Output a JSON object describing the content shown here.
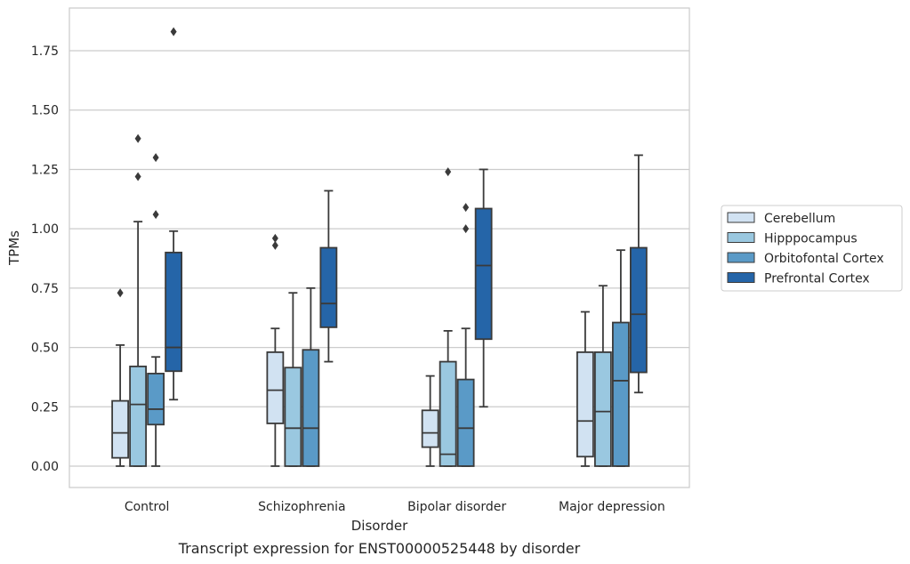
{
  "chart_data": {
    "type": "box",
    "caption": "Transcript expression for ENST00000525448 by disorder",
    "xlabel": "Disorder",
    "ylabel": "TPMs",
    "ylim": [
      -0.09,
      1.93
    ],
    "yticks": [
      0.0,
      0.25,
      0.5,
      0.75,
      1.0,
      1.25,
      1.5,
      1.75
    ],
    "ytick_labels": [
      "0.00",
      "0.25",
      "0.50",
      "0.75",
      "1.00",
      "1.25",
      "1.50",
      "1.75"
    ],
    "grid": "horizontal",
    "legend_position": "right",
    "categories": [
      "Control",
      "Schizophrenia",
      "Bipolar disorder",
      "Major depression"
    ],
    "series": [
      {
        "name": "Cerebellum",
        "color": "#d1e2f2",
        "boxes": [
          {
            "whisker_low": 0.0,
            "q1": 0.035,
            "median": 0.14,
            "q3": 0.275,
            "whisker_high": 0.51,
            "outliers": [
              0.73
            ]
          },
          {
            "whisker_low": 0.0,
            "q1": 0.18,
            "median": 0.32,
            "q3": 0.48,
            "whisker_high": 0.58,
            "outliers": [
              0.93,
              0.96
            ]
          },
          {
            "whisker_low": 0.0,
            "q1": 0.08,
            "median": 0.14,
            "q3": 0.235,
            "whisker_high": 0.38,
            "outliers": []
          },
          {
            "whisker_low": 0.0,
            "q1": 0.04,
            "median": 0.19,
            "q3": 0.48,
            "whisker_high": 0.65,
            "outliers": []
          }
        ]
      },
      {
        "name": "Hipppocampus",
        "color": "#9ac8e0",
        "boxes": [
          {
            "whisker_low": 0.0,
            "q1": 0.0,
            "median": 0.26,
            "q3": 0.42,
            "whisker_high": 1.03,
            "outliers": [
              1.22,
              1.38
            ]
          },
          {
            "whisker_low": 0.0,
            "q1": 0.0,
            "median": 0.16,
            "q3": 0.415,
            "whisker_high": 0.73,
            "outliers": []
          },
          {
            "whisker_low": 0.0,
            "q1": 0.0,
            "median": 0.05,
            "q3": 0.44,
            "whisker_high": 0.57,
            "outliers": [
              1.24
            ]
          },
          {
            "whisker_low": 0.0,
            "q1": 0.0,
            "median": 0.23,
            "q3": 0.48,
            "whisker_high": 0.76,
            "outliers": []
          }
        ]
      },
      {
        "name": "Orbitofontal Cortex",
        "color": "#5a9ac7",
        "boxes": [
          {
            "whisker_low": 0.0,
            "q1": 0.175,
            "median": 0.24,
            "q3": 0.39,
            "whisker_high": 0.46,
            "outliers": [
              1.06,
              1.3
            ]
          },
          {
            "whisker_low": 0.0,
            "q1": 0.0,
            "median": 0.16,
            "q3": 0.49,
            "whisker_high": 0.75,
            "outliers": []
          },
          {
            "whisker_low": 0.0,
            "q1": 0.0,
            "median": 0.16,
            "q3": 0.365,
            "whisker_high": 0.58,
            "outliers": [
              1.0,
              1.09
            ]
          },
          {
            "whisker_low": 0.0,
            "q1": 0.0,
            "median": 0.36,
            "q3": 0.605,
            "whisker_high": 0.91,
            "outliers": []
          }
        ]
      },
      {
        "name": "Prefrontal Cortex",
        "color": "#2565a8",
        "boxes": [
          {
            "whisker_low": 0.28,
            "q1": 0.4,
            "median": 0.5,
            "q3": 0.9,
            "whisker_high": 0.99,
            "outliers": [
              1.83
            ]
          },
          {
            "whisker_low": 0.44,
            "q1": 0.585,
            "median": 0.685,
            "q3": 0.92,
            "whisker_high": 1.16,
            "outliers": []
          },
          {
            "whisker_low": 0.25,
            "q1": 0.535,
            "median": 0.845,
            "q3": 1.085,
            "whisker_high": 1.25,
            "outliers": []
          },
          {
            "whisker_low": 0.31,
            "q1": 0.395,
            "median": 0.64,
            "q3": 0.92,
            "whisker_high": 1.31,
            "outliers": []
          }
        ]
      }
    ]
  }
}
